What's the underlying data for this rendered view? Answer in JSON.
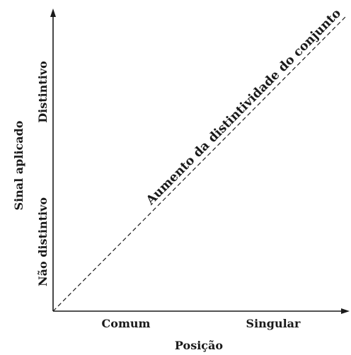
{
  "axes": {
    "x_label": "Posição",
    "y_label": "Sinal aplicado",
    "x_ticks": [
      "Comum",
      "Singular"
    ],
    "y_ticks": [
      "Não distintivo",
      "Distintivo"
    ]
  },
  "diagonal": {
    "label": "Aumento da distintividade do conjunto"
  },
  "colors": {
    "ink": "#1a1a1a"
  }
}
